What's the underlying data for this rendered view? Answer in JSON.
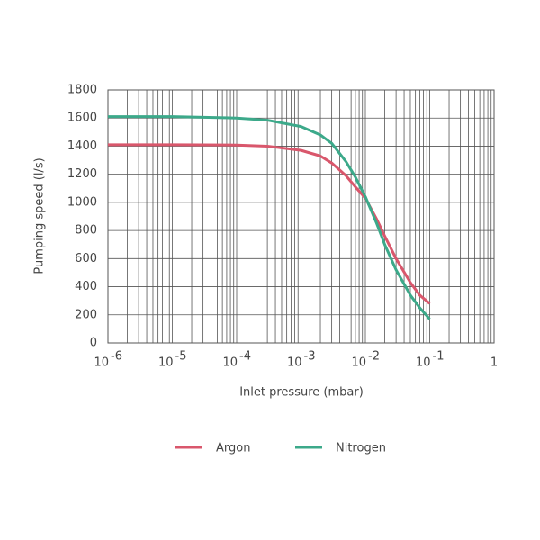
{
  "chart_data": {
    "type": "line",
    "xlabel": "Inlet pressure (mbar)",
    "ylabel": "Pumping speed (l/s)",
    "x_scale": "log",
    "grid": true,
    "legend_position": "bottom",
    "x": [
      1e-06,
      1e-05,
      0.0001,
      0.0003,
      0.001,
      0.002,
      0.003,
      0.005,
      0.007,
      0.01,
      0.015,
      0.02,
      0.03,
      0.05,
      0.07,
      0.1
    ],
    "series": [
      {
        "name": "Argon",
        "color": "#d9576c",
        "values": [
          1410,
          1410,
          1408,
          1400,
          1370,
          1330,
          1280,
          1190,
          1110,
          1030,
          880,
          760,
          600,
          430,
          340,
          280
        ]
      },
      {
        "name": "Nitrogen",
        "color": "#3ca98a",
        "values": [
          1610,
          1610,
          1600,
          1585,
          1540,
          1480,
          1420,
          1290,
          1180,
          1040,
          850,
          700,
          520,
          340,
          250,
          170
        ]
      }
    ],
    "xlim": [
      1e-06,
      1
    ],
    "xticks": [
      {
        "value": 1e-06,
        "label": "10",
        "exponent": "-6"
      },
      {
        "value": 1e-05,
        "label": "10",
        "exponent": "-5"
      },
      {
        "value": 0.0001,
        "label": "10",
        "exponent": "-4"
      },
      {
        "value": 0.001,
        "label": "10",
        "exponent": "-3"
      },
      {
        "value": 0.01,
        "label": "10",
        "exponent": "-2"
      },
      {
        "value": 0.1,
        "label": "10",
        "exponent": "-1"
      },
      1
    ],
    "xminor_ticks": [
      2e-06,
      3e-06,
      4e-06,
      5e-06,
      6e-06,
      7e-06,
      8e-06,
      9e-06,
      2e-05,
      3e-05,
      4e-05,
      5e-05,
      6e-05,
      7e-05,
      8e-05,
      9e-05,
      0.0002,
      0.0003,
      0.0004,
      0.0005,
      0.0006,
      0.0007,
      0.0008,
      0.0009,
      0.002,
      0.003,
      0.004,
      0.005,
      0.006,
      0.007,
      0.008,
      0.009,
      0.02,
      0.03,
      0.04,
      0.05,
      0.06,
      0.07,
      0.08,
      0.09,
      0.2,
      0.3,
      0.4,
      0.5,
      0.6,
      0.7,
      0.8,
      0.9
    ],
    "ylim": [
      0,
      1800
    ],
    "yticks": [
      0,
      200,
      400,
      600,
      800,
      1000,
      1200,
      1400,
      1600,
      1800
    ]
  }
}
